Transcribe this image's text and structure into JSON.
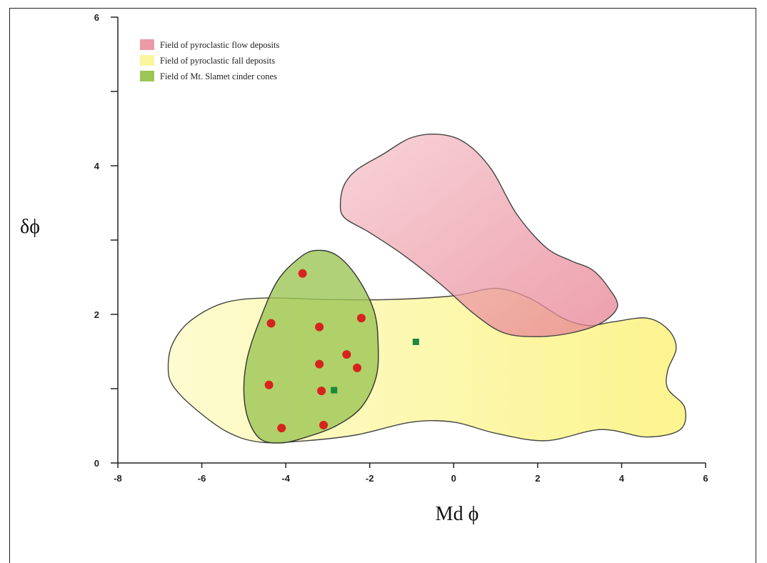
{
  "chart_data": {
    "type": "scatter",
    "xlabel": "Md  ϕ",
    "ylabel": "δϕ",
    "xlim": [
      -8,
      6
    ],
    "ylim": [
      0,
      6
    ],
    "x_ticks": [
      "-8",
      "-6",
      "-4",
      "-2",
      "0",
      "2",
      "4",
      "6"
    ],
    "y_ticks": [
      "0",
      "2",
      "4",
      "6"
    ],
    "y_minor_ticks": [
      1,
      3,
      5
    ],
    "grid": false,
    "legend": {
      "placement": "top-left",
      "entries": [
        {
          "label": "Field of pyroclastic flow deposits",
          "color": "#ec9aa6"
        },
        {
          "label": "Field of pyroclastic fall deposits",
          "color": "#fbf5a0"
        },
        {
          "label": "Field of Mt. Slamet cinder cones",
          "color": "#9cc655"
        }
      ]
    },
    "fields": [
      {
        "name": "Field of pyroclastic fall deposits",
        "color": "#fdf9a8",
        "stroke": "#444444",
        "opacity": 0.85,
        "outline": [
          [
            -6.8,
            1.3
          ],
          [
            -6.7,
            1.6
          ],
          [
            -6.3,
            1.9
          ],
          [
            -5.5,
            2.15
          ],
          [
            -4.5,
            2.22
          ],
          [
            -3,
            2.2
          ],
          [
            -1.5,
            2.2
          ],
          [
            0,
            2.25
          ],
          [
            1,
            2.35
          ],
          [
            1.8,
            2.22
          ],
          [
            2.6,
            1.95
          ],
          [
            3.2,
            1.85
          ],
          [
            3.8,
            1.9
          ],
          [
            4.6,
            1.95
          ],
          [
            5.1,
            1.8
          ],
          [
            5.3,
            1.55
          ],
          [
            5.1,
            1.25
          ],
          [
            5.1,
            1.0
          ],
          [
            5.5,
            0.75
          ],
          [
            5.4,
            0.45
          ],
          [
            4.6,
            0.35
          ],
          [
            3.5,
            0.45
          ],
          [
            2.2,
            0.3
          ],
          [
            1,
            0.4
          ],
          [
            0,
            0.55
          ],
          [
            -1,
            0.55
          ],
          [
            -2.3,
            0.38
          ],
          [
            -3.5,
            0.3
          ],
          [
            -4.6,
            0.28
          ],
          [
            -5.4,
            0.42
          ],
          [
            -6.2,
            0.75
          ],
          [
            -6.7,
            1.05
          ]
        ]
      },
      {
        "name": "Field of pyroclastic flow deposits",
        "color": "#eea0ad",
        "stroke": "#444444",
        "opacity": 0.75,
        "outline": [
          [
            -2.7,
            3.5
          ],
          [
            -2.6,
            3.75
          ],
          [
            -2.3,
            3.95
          ],
          [
            -1.7,
            4.15
          ],
          [
            -1,
            4.38
          ],
          [
            -0.3,
            4.42
          ],
          [
            0.3,
            4.3
          ],
          [
            0.9,
            3.95
          ],
          [
            1.5,
            3.35
          ],
          [
            2.2,
            2.9
          ],
          [
            2.8,
            2.72
          ],
          [
            3.3,
            2.6
          ],
          [
            3.7,
            2.35
          ],
          [
            3.9,
            2.1
          ],
          [
            3.5,
            1.88
          ],
          [
            2.8,
            1.75
          ],
          [
            2,
            1.7
          ],
          [
            1.2,
            1.75
          ],
          [
            0.5,
            2.0
          ],
          [
            -0.3,
            2.4
          ],
          [
            -1.2,
            2.8
          ],
          [
            -2,
            3.1
          ],
          [
            -2.6,
            3.3
          ]
        ]
      },
      {
        "name": "Field of Mt. Slamet cinder cones",
        "color": "#9cc655",
        "stroke": "#333333",
        "opacity": 0.8,
        "outline": [
          [
            -3.3,
            2.86
          ],
          [
            -3.7,
            2.75
          ],
          [
            -4.2,
            2.45
          ],
          [
            -4.6,
            1.95
          ],
          [
            -4.9,
            1.45
          ],
          [
            -5.0,
            1.0
          ],
          [
            -4.9,
            0.6
          ],
          [
            -4.6,
            0.32
          ],
          [
            -4.1,
            0.27
          ],
          [
            -3.5,
            0.35
          ],
          [
            -2.8,
            0.5
          ],
          [
            -2.2,
            0.75
          ],
          [
            -1.85,
            1.15
          ],
          [
            -1.8,
            1.6
          ],
          [
            -1.9,
            2.05
          ],
          [
            -2.3,
            2.5
          ],
          [
            -2.8,
            2.8
          ]
        ]
      }
    ],
    "series": [
      {
        "marker": "circle",
        "color": "#d6231e",
        "points": [
          [
            -3.6,
            2.55
          ],
          [
            -4.35,
            1.88
          ],
          [
            -3.2,
            1.83
          ],
          [
            -2.2,
            1.95
          ],
          [
            -2.55,
            1.46
          ],
          [
            -3.2,
            1.33
          ],
          [
            -2.3,
            1.28
          ],
          [
            -4.4,
            1.05
          ],
          [
            -3.15,
            0.97
          ],
          [
            -4.1,
            0.47
          ],
          [
            -3.1,
            0.51
          ]
        ]
      },
      {
        "marker": "square",
        "color": "#1a8a3c",
        "points": [
          [
            -0.9,
            1.63
          ],
          [
            -2.85,
            0.98
          ]
        ]
      }
    ]
  }
}
